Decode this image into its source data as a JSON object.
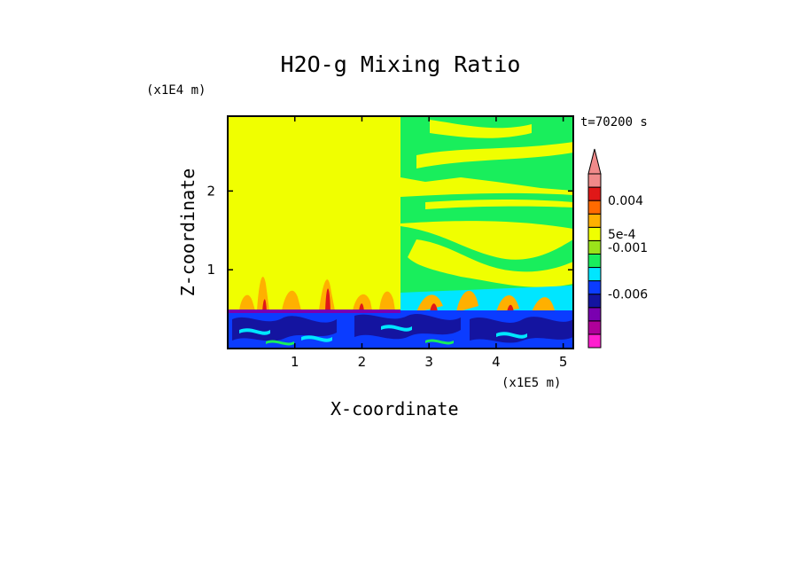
{
  "chart_data": {
    "type": "heatmap",
    "title": "H2O-g Mixing Ratio",
    "xlabel": "X-coordinate",
    "ylabel": "Z-coordinate",
    "x_unit": "(x1E5 m)",
    "y_unit": "(x1E4 m)",
    "time_label": "t=70200 s",
    "xlim": [
      0,
      5.15
    ],
    "ylim": [
      0,
      2.95
    ],
    "x_ticks": [
      1,
      2,
      3,
      4,
      5
    ],
    "y_ticks": [
      1,
      2
    ],
    "colorbar": {
      "colors": [
        "#ff1fcf",
        "#b0009a",
        "#7a00b0",
        "#1414a0",
        "#0b3cff",
        "#00e6ff",
        "#19ee5c",
        "#9be31a",
        "#f0ff00",
        "#ffb000",
        "#ff6a00",
        "#e01818",
        "#f08a8a"
      ],
      "labels": [
        {
          "text": "0.004",
          "level": 0.004
        },
        {
          "text": "5e-4",
          "level": 0.0005
        },
        {
          "text": "-0.001",
          "level": -0.001
        },
        {
          "text": "-0.006",
          "level": -0.006
        }
      ],
      "extend": "max"
    }
  }
}
